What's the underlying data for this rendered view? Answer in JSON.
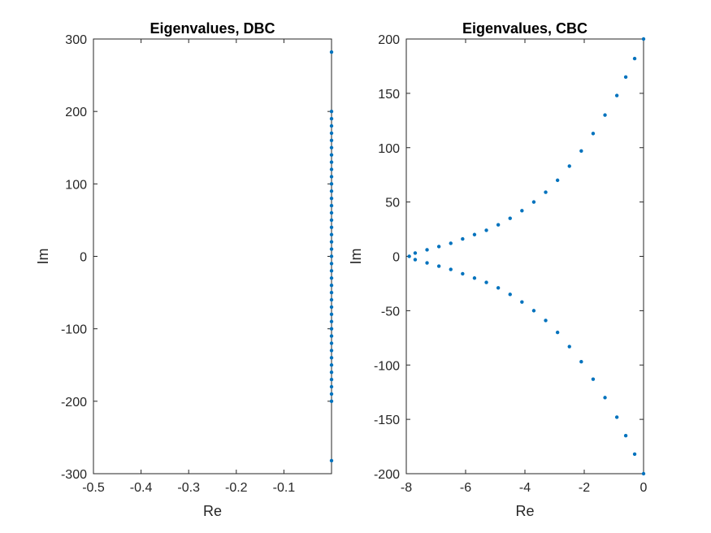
{
  "chart_data": [
    {
      "type": "scatter",
      "title": "Eigenvalues, DBC",
      "xlabel": "Re",
      "ylabel": "Im",
      "xlim": [
        -0.5,
        0
      ],
      "ylim": [
        -300,
        300
      ],
      "xticks": [
        -0.5,
        -0.4,
        -0.3,
        -0.2,
        -0.1
      ],
      "xtick_labels": [
        "-0.5",
        "-0.4",
        "-0.3",
        "-0.2",
        "-0.1"
      ],
      "yticks": [
        -300,
        -200,
        -100,
        0,
        100,
        200,
        300
      ],
      "ytick_labels": [
        "-300",
        "-200",
        "-100",
        "0",
        "100",
        "200",
        "300"
      ],
      "color": "#0072BD",
      "grid": false,
      "series": [
        {
          "points": [
            [
              0,
              282
            ],
            [
              0,
              -282
            ],
            [
              0,
              200
            ],
            [
              0,
              190
            ],
            [
              0,
              180
            ],
            [
              0,
              170
            ],
            [
              0,
              160
            ],
            [
              0,
              150
            ],
            [
              0,
              140
            ],
            [
              0,
              130
            ],
            [
              0,
              120
            ],
            [
              0,
              110
            ],
            [
              0,
              100
            ],
            [
              0,
              90
            ],
            [
              0,
              80
            ],
            [
              0,
              70
            ],
            [
              0,
              60
            ],
            [
              0,
              50
            ],
            [
              0,
              40
            ],
            [
              0,
              30
            ],
            [
              0,
              20
            ],
            [
              0,
              10
            ],
            [
              0,
              0
            ],
            [
              0,
              -10
            ],
            [
              0,
              -20
            ],
            [
              0,
              -30
            ],
            [
              0,
              -40
            ],
            [
              0,
              -50
            ],
            [
              0,
              -60
            ],
            [
              0,
              -70
            ],
            [
              0,
              -80
            ],
            [
              0,
              -90
            ],
            [
              0,
              -100
            ],
            [
              0,
              -110
            ],
            [
              0,
              -120
            ],
            [
              0,
              -130
            ],
            [
              0,
              -140
            ],
            [
              0,
              -150
            ],
            [
              0,
              -160
            ],
            [
              0,
              -170
            ],
            [
              0,
              -180
            ],
            [
              0,
              -190
            ],
            [
              0,
              -200
            ]
          ]
        }
      ]
    },
    {
      "type": "scatter",
      "title": "Eigenvalues, CBC",
      "xlabel": "Re",
      "ylabel": "Im",
      "xlim": [
        -8,
        0
      ],
      "ylim": [
        -200,
        200
      ],
      "xticks": [
        -8,
        -6,
        -4,
        -2,
        0
      ],
      "xtick_labels": [
        "-8",
        "-6",
        "-4",
        "-2",
        "0"
      ],
      "yticks": [
        -200,
        -150,
        -100,
        -50,
        0,
        50,
        100,
        150,
        200
      ],
      "ytick_labels": [
        "-200",
        "-150",
        "-100",
        "-50",
        "0",
        "50",
        "100",
        "150",
        "200"
      ],
      "color": "#0072BD",
      "grid": false,
      "series": [
        {
          "points": [
            [
              -7.9,
              0
            ],
            [
              -7.7,
              3
            ],
            [
              -7.3,
              6
            ],
            [
              -6.9,
              9
            ],
            [
              -6.5,
              12
            ],
            [
              -6.1,
              16
            ],
            [
              -5.7,
              20
            ],
            [
              -5.3,
              24
            ],
            [
              -4.9,
              29
            ],
            [
              -4.5,
              35
            ],
            [
              -4.1,
              42
            ],
            [
              -3.7,
              50
            ],
            [
              -3.3,
              59
            ],
            [
              -2.9,
              70
            ],
            [
              -2.5,
              83
            ],
            [
              -2.1,
              97
            ],
            [
              -1.7,
              113
            ],
            [
              -1.3,
              130
            ],
            [
              -0.9,
              148
            ],
            [
              -0.6,
              165
            ],
            [
              -0.3,
              182
            ],
            [
              0,
              200
            ],
            [
              -7.7,
              -3
            ],
            [
              -7.3,
              -6
            ],
            [
              -6.9,
              -9
            ],
            [
              -6.5,
              -12
            ],
            [
              -6.1,
              -16
            ],
            [
              -5.7,
              -20
            ],
            [
              -5.3,
              -24
            ],
            [
              -4.9,
              -29
            ],
            [
              -4.5,
              -35
            ],
            [
              -4.1,
              -42
            ],
            [
              -3.7,
              -50
            ],
            [
              -3.3,
              -59
            ],
            [
              -2.9,
              -70
            ],
            [
              -2.5,
              -83
            ],
            [
              -2.1,
              -97
            ],
            [
              -1.7,
              -113
            ],
            [
              -1.3,
              -130
            ],
            [
              -0.9,
              -148
            ],
            [
              -0.6,
              -165
            ],
            [
              -0.3,
              -182
            ],
            [
              0,
              -200
            ]
          ]
        }
      ]
    }
  ]
}
